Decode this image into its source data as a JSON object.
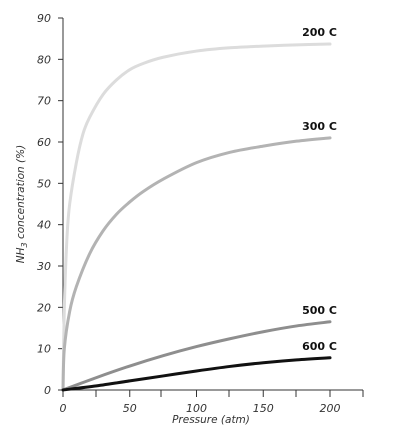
{
  "chart_data": {
    "type": "line",
    "title": "",
    "xlabel": "Pressure (atm)",
    "ylabel_main": "NH",
    "ylabel_sub": "3",
    "ylabel_rest": " concentration (%)",
    "xlim": [
      0,
      220
    ],
    "ylim": [
      0,
      90
    ],
    "x_ticks": [
      "0",
      "50",
      "100",
      "150",
      "200"
    ],
    "x_tick_values": [
      0,
      50,
      100,
      150,
      200
    ],
    "y_ticks": [
      0,
      10,
      20,
      30,
      40,
      50,
      60,
      70,
      80,
      90
    ],
    "grid": false,
    "legend": "labels at line ends",
    "series": [
      {
        "name": "200 C",
        "color": "#dcdcdc",
        "x": [
          0,
          1,
          3,
          5,
          10,
          15,
          20,
          30,
          40,
          50,
          60,
          75,
          100,
          125,
          150,
          175,
          200
        ],
        "y": [
          0,
          20,
          37,
          45,
          55,
          62,
          66,
          71.5,
          75,
          77.5,
          79,
          80.5,
          82,
          82.8,
          83.2,
          83.5,
          83.7
        ]
      },
      {
        "name": "300 C",
        "color": "#b3b3b3",
        "x": [
          0,
          1,
          5,
          10,
          20,
          30,
          40,
          50,
          60,
          75,
          100,
          125,
          150,
          175,
          200
        ],
        "y": [
          0,
          10,
          19,
          25,
          33,
          38.5,
          42.5,
          45.5,
          48,
          51,
          55,
          57.5,
          59,
          60.2,
          61
        ]
      },
      {
        "name": "500 C",
        "color": "#8e8e8e",
        "x": [
          0,
          25,
          50,
          75,
          100,
          125,
          150,
          175,
          200
        ],
        "y": [
          0,
          3,
          5.8,
          8.3,
          10.5,
          12.4,
          14.1,
          15.5,
          16.5
        ]
      },
      {
        "name": "600 C",
        "color": "#111111",
        "x": [
          0,
          25,
          50,
          75,
          100,
          125,
          150,
          175,
          200
        ],
        "y": [
          0,
          1,
          2.2,
          3.4,
          4.6,
          5.7,
          6.6,
          7.3,
          7.8
        ]
      }
    ]
  }
}
